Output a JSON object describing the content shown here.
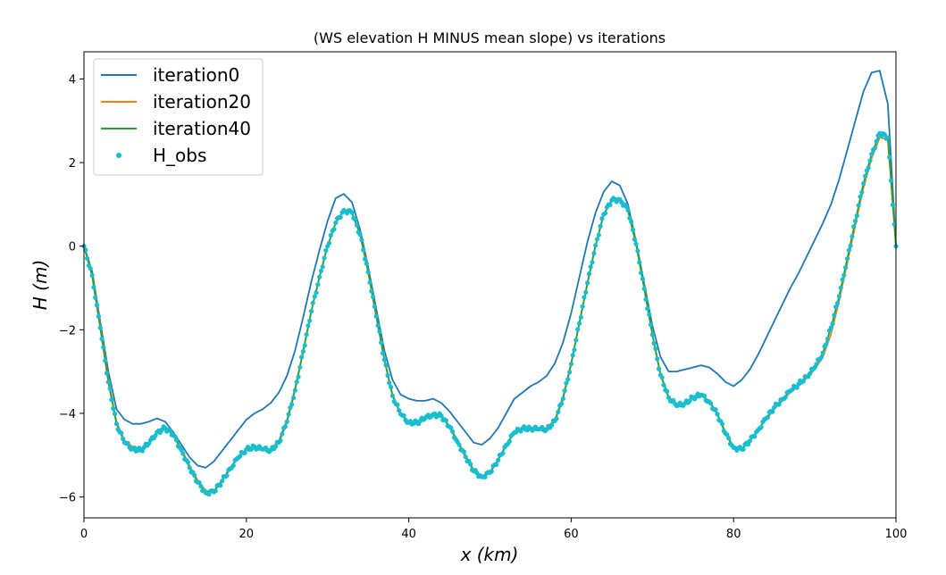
{
  "chart_data": {
    "type": "line",
    "title": "(WS elevation H MINUS mean slope) vs iterations",
    "xlabel": "x (km)",
    "ylabel": "H (m)",
    "xlim": [
      0,
      100
    ],
    "ylim": [
      -6.5,
      4.65
    ],
    "xticks": [
      0,
      20,
      40,
      60,
      80,
      100
    ],
    "yticks": [
      -6,
      -4,
      -2,
      0,
      2,
      4
    ],
    "xtick_labels": [
      "0",
      "20",
      "40",
      "60",
      "80",
      "100"
    ],
    "ytick_labels": [
      "−6",
      "−4",
      "−2",
      "0",
      "2",
      "4"
    ],
    "grid": false,
    "legend_position": "top-left",
    "series": [
      {
        "name": "iteration0",
        "style": "line",
        "color": "#1f77b4",
        "x": [
          0,
          1,
          2,
          3,
          4,
          5,
          6,
          7,
          8,
          9,
          10,
          11,
          12,
          13,
          14,
          15,
          16,
          17,
          18,
          19,
          20,
          21,
          22,
          23,
          24,
          25,
          26,
          27,
          28,
          29,
          30,
          31,
          32,
          33,
          34,
          35,
          36,
          37,
          38,
          39,
          40,
          41,
          42,
          43,
          44,
          45,
          46,
          47,
          48,
          49,
          50,
          51,
          52,
          53,
          54,
          55,
          56,
          57,
          58,
          59,
          60,
          61,
          62,
          63,
          64,
          65,
          66,
          67,
          68,
          69,
          70,
          71,
          72,
          73,
          74,
          75,
          76,
          77,
          78,
          79,
          80,
          81,
          82,
          83,
          84,
          85,
          86,
          87,
          88,
          89,
          90,
          91,
          92,
          93,
          94,
          95,
          96,
          97,
          98,
          99,
          100
        ],
        "y": [
          0,
          -0.6,
          -1.8,
          -3.0,
          -3.9,
          -4.15,
          -4.25,
          -4.25,
          -4.2,
          -4.12,
          -4.2,
          -4.45,
          -4.75,
          -5.05,
          -5.25,
          -5.3,
          -5.15,
          -4.9,
          -4.65,
          -4.4,
          -4.15,
          -4.0,
          -3.9,
          -3.75,
          -3.5,
          -3.1,
          -2.5,
          -1.7,
          -0.85,
          -0.1,
          0.6,
          1.15,
          1.25,
          1.05,
          0.4,
          -0.5,
          -1.5,
          -2.5,
          -3.2,
          -3.55,
          -3.65,
          -3.7,
          -3.7,
          -3.65,
          -3.75,
          -3.95,
          -4.2,
          -4.45,
          -4.7,
          -4.75,
          -4.6,
          -4.35,
          -4.0,
          -3.65,
          -3.5,
          -3.35,
          -3.25,
          -3.1,
          -2.8,
          -2.3,
          -1.6,
          -0.75,
          0.1,
          0.8,
          1.3,
          1.55,
          1.45,
          1.0,
          0.1,
          -0.9,
          -1.9,
          -2.65,
          -3.0,
          -3.0,
          -2.95,
          -2.9,
          -2.85,
          -2.9,
          -3.05,
          -3.25,
          -3.35,
          -3.2,
          -2.95,
          -2.6,
          -2.2,
          -1.8,
          -1.4,
          -1.0,
          -0.65,
          -0.25,
          0.15,
          0.55,
          1.0,
          1.6,
          2.3,
          3.0,
          3.7,
          4.15,
          4.2,
          3.4,
          0
        ]
      },
      {
        "name": "iteration20",
        "style": "line",
        "color": "#ff7f0e",
        "x": [
          0,
          1,
          2,
          3,
          4,
          5,
          6,
          7,
          8,
          9,
          10,
          11,
          12,
          13,
          14,
          15,
          16,
          17,
          18,
          19,
          20,
          21,
          22,
          23,
          24,
          25,
          26,
          27,
          28,
          29,
          30,
          31,
          32,
          33,
          34,
          35,
          36,
          37,
          38,
          39,
          40,
          41,
          42,
          43,
          44,
          45,
          46,
          47,
          48,
          49,
          50,
          51,
          52,
          53,
          54,
          55,
          56,
          57,
          58,
          59,
          60,
          61,
          62,
          63,
          64,
          65,
          66,
          67,
          68,
          69,
          70,
          71,
          72,
          73,
          74,
          75,
          76,
          77,
          78,
          79,
          80,
          81,
          82,
          83,
          84,
          85,
          86,
          87,
          88,
          89,
          90,
          91,
          92,
          93,
          94,
          95,
          96,
          97,
          98,
          99,
          100
        ],
        "y": [
          0,
          -0.7,
          -1.9,
          -3.2,
          -4.2,
          -4.65,
          -4.8,
          -4.85,
          -4.7,
          -4.45,
          -4.35,
          -4.5,
          -4.85,
          -5.25,
          -5.6,
          -5.85,
          -5.85,
          -5.6,
          -5.3,
          -5.05,
          -4.85,
          -4.8,
          -4.85,
          -4.85,
          -4.65,
          -4.15,
          -3.4,
          -2.5,
          -1.55,
          -0.75,
          0.0,
          0.55,
          0.85,
          0.8,
          0.3,
          -0.6,
          -1.65,
          -2.7,
          -3.55,
          -4.0,
          -4.2,
          -4.2,
          -4.1,
          -4.0,
          -4.05,
          -4.3,
          -4.65,
          -5.0,
          -5.35,
          -5.5,
          -5.4,
          -5.1,
          -4.75,
          -4.45,
          -4.35,
          -4.35,
          -4.35,
          -4.35,
          -4.15,
          -3.6,
          -2.8,
          -1.85,
          -0.9,
          0.0,
          0.75,
          1.1,
          1.1,
          0.85,
          0.05,
          -1.0,
          -2.1,
          -3.05,
          -3.6,
          -3.8,
          -3.75,
          -3.6,
          -3.55,
          -3.7,
          -4.0,
          -4.45,
          -4.8,
          -4.85,
          -4.65,
          -4.4,
          -4.15,
          -3.9,
          -3.7,
          -3.5,
          -3.35,
          -3.15,
          -2.95,
          -2.65,
          -2.1,
          -1.3,
          -0.4,
          0.5,
          1.4,
          2.1,
          2.6,
          2.55,
          0
        ]
      },
      {
        "name": "iteration40",
        "style": "line",
        "color": "#2ca02c",
        "x": [
          0,
          1,
          2,
          3,
          4,
          5,
          6,
          7,
          8,
          9,
          10,
          11,
          12,
          13,
          14,
          15,
          16,
          17,
          18,
          19,
          20,
          21,
          22,
          23,
          24,
          25,
          26,
          27,
          28,
          29,
          30,
          31,
          32,
          33,
          34,
          35,
          36,
          37,
          38,
          39,
          40,
          41,
          42,
          43,
          44,
          45,
          46,
          47,
          48,
          49,
          50,
          51,
          52,
          53,
          54,
          55,
          56,
          57,
          58,
          59,
          60,
          61,
          62,
          63,
          64,
          65,
          66,
          67,
          68,
          69,
          70,
          71,
          72,
          73,
          74,
          75,
          76,
          77,
          78,
          79,
          80,
          81,
          82,
          83,
          84,
          85,
          86,
          87,
          88,
          89,
          90,
          91,
          92,
          93,
          94,
          95,
          96,
          97,
          98,
          99,
          100
        ],
        "y": [
          0,
          -0.7,
          -1.95,
          -3.25,
          -4.25,
          -4.7,
          -4.85,
          -4.88,
          -4.72,
          -4.45,
          -4.35,
          -4.52,
          -4.88,
          -5.3,
          -5.65,
          -5.9,
          -5.88,
          -5.62,
          -5.32,
          -5.06,
          -4.86,
          -4.8,
          -4.86,
          -4.88,
          -4.7,
          -4.2,
          -3.45,
          -2.52,
          -1.56,
          -0.74,
          0.0,
          0.56,
          0.86,
          0.8,
          0.28,
          -0.62,
          -1.68,
          -2.72,
          -3.58,
          -4.02,
          -4.22,
          -4.22,
          -4.12,
          -4.02,
          -4.06,
          -4.32,
          -4.68,
          -5.04,
          -5.38,
          -5.52,
          -5.42,
          -5.12,
          -4.76,
          -4.46,
          -4.36,
          -4.36,
          -4.38,
          -4.38,
          -4.18,
          -3.65,
          -2.82,
          -1.85,
          -0.88,
          0.02,
          0.76,
          1.1,
          1.12,
          0.86,
          0.05,
          -1.02,
          -2.12,
          -3.08,
          -3.62,
          -3.82,
          -3.76,
          -3.62,
          -3.56,
          -3.72,
          -4.02,
          -4.48,
          -4.82,
          -4.86,
          -4.66,
          -4.4,
          -4.12,
          -3.86,
          -3.66,
          -3.46,
          -3.3,
          -3.12,
          -2.9,
          -2.55,
          -1.95,
          -1.2,
          -0.3,
          0.6,
          1.5,
          2.2,
          2.7,
          2.6,
          0
        ]
      },
      {
        "name": "H_obs",
        "style": "scatter",
        "color": "#17becf",
        "x": [
          0,
          1,
          2,
          3,
          4,
          5,
          6,
          7,
          8,
          9,
          10,
          11,
          12,
          13,
          14,
          15,
          16,
          17,
          18,
          19,
          20,
          21,
          22,
          23,
          24,
          25,
          26,
          27,
          28,
          29,
          30,
          31,
          32,
          33,
          34,
          35,
          36,
          37,
          38,
          39,
          40,
          41,
          42,
          43,
          44,
          45,
          46,
          47,
          48,
          49,
          50,
          51,
          52,
          53,
          54,
          55,
          56,
          57,
          58,
          59,
          60,
          61,
          62,
          63,
          64,
          65,
          66,
          67,
          68,
          69,
          70,
          71,
          72,
          73,
          74,
          75,
          76,
          77,
          78,
          79,
          80,
          81,
          82,
          83,
          84,
          85,
          86,
          87,
          88,
          89,
          90,
          91,
          92,
          93,
          94,
          95,
          96,
          97,
          98,
          99,
          100
        ],
        "y": [
          0,
          -0.7,
          -1.95,
          -3.25,
          -4.25,
          -4.7,
          -4.85,
          -4.88,
          -4.72,
          -4.45,
          -4.35,
          -4.52,
          -4.88,
          -5.3,
          -5.65,
          -5.9,
          -5.88,
          -5.62,
          -5.32,
          -5.06,
          -4.86,
          -4.8,
          -4.86,
          -4.88,
          -4.7,
          -4.2,
          -3.45,
          -2.52,
          -1.56,
          -0.74,
          0.0,
          0.56,
          0.86,
          0.8,
          0.28,
          -0.62,
          -1.68,
          -2.72,
          -3.58,
          -4.02,
          -4.22,
          -4.22,
          -4.12,
          -4.02,
          -4.06,
          -4.32,
          -4.68,
          -5.04,
          -5.38,
          -5.52,
          -5.42,
          -5.12,
          -4.76,
          -4.46,
          -4.36,
          -4.36,
          -4.38,
          -4.38,
          -4.18,
          -3.65,
          -2.82,
          -1.85,
          -0.88,
          0.02,
          0.76,
          1.1,
          1.12,
          0.86,
          0.05,
          -1.02,
          -2.12,
          -3.08,
          -3.62,
          -3.82,
          -3.76,
          -3.62,
          -3.56,
          -3.72,
          -4.02,
          -4.48,
          -4.82,
          -4.86,
          -4.66,
          -4.4,
          -4.12,
          -3.86,
          -3.66,
          -3.46,
          -3.3,
          -3.12,
          -2.9,
          -2.55,
          -1.95,
          -1.2,
          -0.3,
          0.6,
          1.5,
          2.2,
          2.7,
          2.6,
          0
        ]
      }
    ]
  }
}
